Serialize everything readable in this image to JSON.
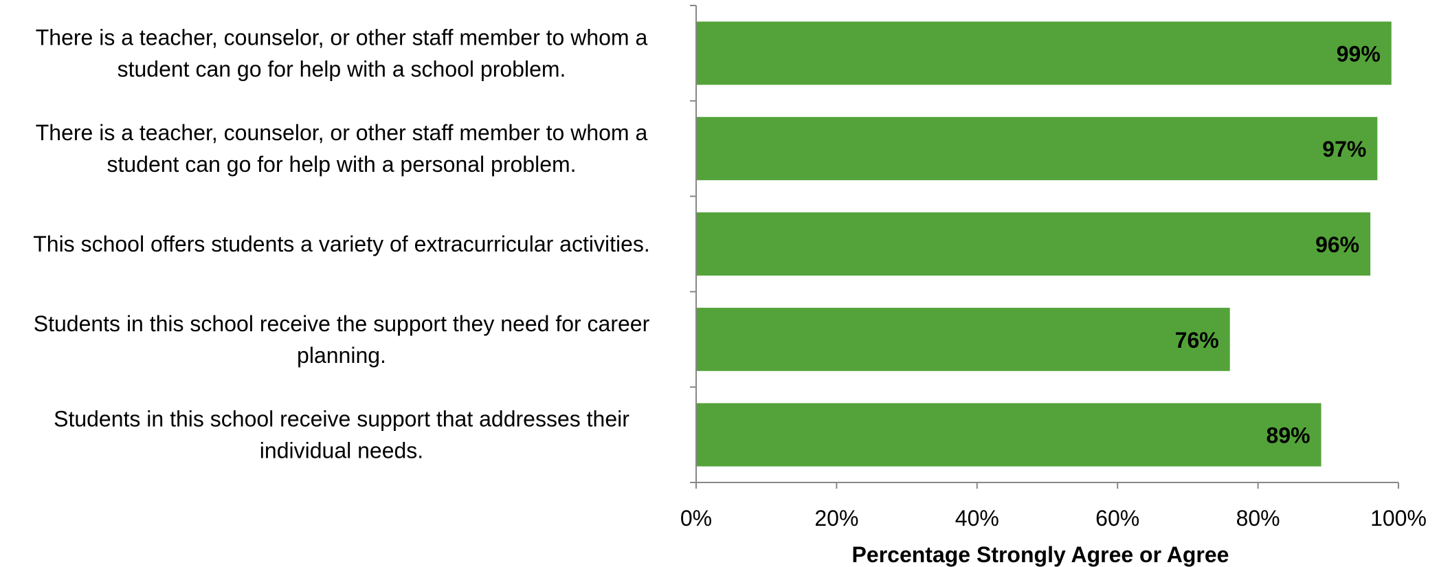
{
  "chart_data": {
    "type": "bar",
    "orientation": "horizontal",
    "categories": [
      [
        "There is a teacher, counselor, or other staff member to whom a",
        "student can go for help with a school problem."
      ],
      [
        "There is a teacher, counselor, or other staff member to whom a",
        "student can go for help with a personal problem."
      ],
      [
        "This school offers students a variety of extracurricular activities."
      ],
      [
        "Students in this school receive the support they need for career",
        "planning."
      ],
      [
        "Students in this school receive support that addresses their",
        "individual needs."
      ]
    ],
    "values": [
      99,
      97,
      96,
      76,
      89
    ],
    "data_labels": [
      "99%",
      "97%",
      "96%",
      "76%",
      "89%"
    ],
    "xlim": [
      0,
      100
    ],
    "x_ticks": [
      0,
      20,
      40,
      60,
      80,
      100
    ],
    "x_tick_labels": [
      "0%",
      "20%",
      "40%",
      "60%",
      "80%",
      "100%"
    ],
    "xlabel": "Percentage Strongly Agree or Agree",
    "title": "",
    "grid": false,
    "legend": "none",
    "bar_color": "#54a33a",
    "axis_color": "#878787"
  }
}
